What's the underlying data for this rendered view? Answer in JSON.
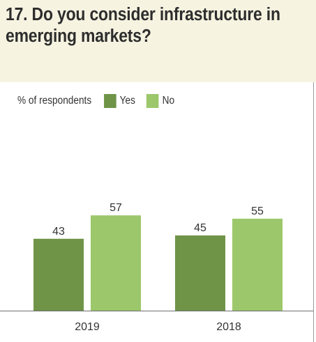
{
  "title": "17. Do you consider infrastructure in emerging markets?",
  "colors": {
    "header_bg": "#f6f3e1",
    "yes": "#6f9448",
    "no": "#9cc76b"
  },
  "chart_data": {
    "type": "bar",
    "ylabel": "% of respondents",
    "categories": [
      "2019",
      "2018"
    ],
    "series": [
      {
        "name": "Yes",
        "values": [
          43,
          45
        ]
      },
      {
        "name": "No",
        "values": [
          57,
          55
        ]
      }
    ],
    "ylim": [
      0,
      100
    ],
    "legend": "top-left",
    "grid": false
  }
}
